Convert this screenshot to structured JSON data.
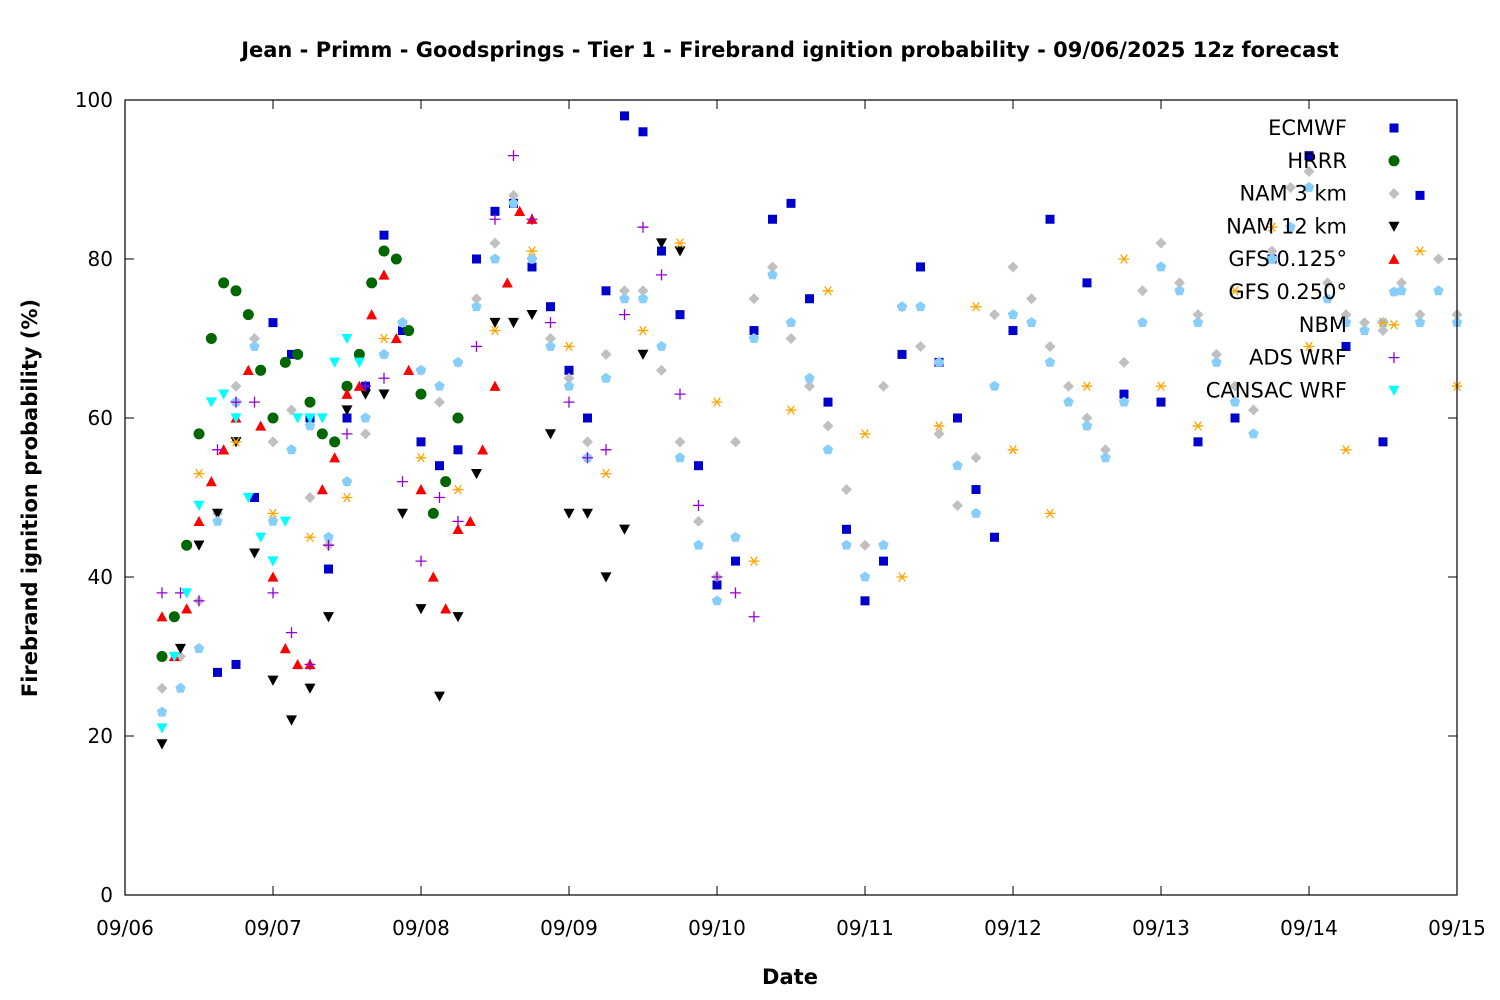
{
  "chart_data": {
    "type": "scatter",
    "title": "Jean - Primm - Goodsprings - Tier 1 - Firebrand ignition probability - 09/06/2025 12z forecast",
    "xlabel": "Date",
    "ylabel": "Firebrand ignition probability (%)",
    "xlim": [
      "2025-09-06T00:00",
      "2025-09-15T00:00"
    ],
    "ylim": [
      0,
      100
    ],
    "x_ticks": [
      "09/06",
      "09/07",
      "09/08",
      "09/09",
      "09/10",
      "09/11",
      "09/12",
      "09/13",
      "09/14",
      "09/15"
    ],
    "y_ticks": [
      0,
      20,
      40,
      60,
      80,
      100
    ],
    "grid": false,
    "legend_position": "top-right",
    "series": [
      {
        "name": "ECMWF",
        "color": "#0000cc",
        "marker": "square",
        "x": [
          "2025-09-06T15:00",
          "2025-09-06T18:00",
          "2025-09-06T21:00",
          "2025-09-07T00:00",
          "2025-09-07T03:00",
          "2025-09-07T06:00",
          "2025-09-07T09:00",
          "2025-09-07T12:00",
          "2025-09-07T15:00",
          "2025-09-07T18:00",
          "2025-09-07T21:00",
          "2025-09-08T00:00",
          "2025-09-08T03:00",
          "2025-09-08T06:00",
          "2025-09-08T09:00",
          "2025-09-08T12:00",
          "2025-09-08T15:00",
          "2025-09-08T18:00",
          "2025-09-08T21:00",
          "2025-09-09T00:00",
          "2025-09-09T03:00",
          "2025-09-09T06:00",
          "2025-09-09T09:00",
          "2025-09-09T12:00",
          "2025-09-09T15:00",
          "2025-09-09T18:00",
          "2025-09-09T21:00",
          "2025-09-10T00:00",
          "2025-09-10T03:00",
          "2025-09-10T06:00",
          "2025-09-10T09:00",
          "2025-09-10T12:00",
          "2025-09-10T15:00",
          "2025-09-10T18:00",
          "2025-09-10T21:00",
          "2025-09-11T00:00",
          "2025-09-11T03:00",
          "2025-09-11T06:00",
          "2025-09-11T09:00",
          "2025-09-11T12:00",
          "2025-09-11T15:00",
          "2025-09-11T18:00",
          "2025-09-11T21:00",
          "2025-09-12T00:00",
          "2025-09-12T06:00",
          "2025-09-12T12:00",
          "2025-09-12T18:00",
          "2025-09-13T00:00",
          "2025-09-13T06:00",
          "2025-09-13T12:00",
          "2025-09-13T18:00",
          "2025-09-14T00:00",
          "2025-09-14T06:00",
          "2025-09-14T12:00",
          "2025-09-14T18:00"
        ],
        "y": [
          28,
          29,
          50,
          72,
          68,
          60,
          41,
          60,
          64,
          83,
          71,
          57,
          54,
          56,
          80,
          86,
          87,
          79,
          74,
          66,
          60,
          76,
          98,
          96,
          81,
          73,
          54,
          39,
          42,
          71,
          85,
          87,
          75,
          62,
          46,
          37,
          42,
          68,
          79,
          67,
          60,
          51,
          45,
          71,
          85,
          77,
          63,
          62,
          57,
          60,
          80,
          93,
          69,
          57,
          88
        ]
      },
      {
        "name": "HRRR",
        "color": "#006600",
        "marker": "circle",
        "x": [
          "2025-09-06T06:00",
          "2025-09-06T08:00",
          "2025-09-06T10:00",
          "2025-09-06T12:00",
          "2025-09-06T14:00",
          "2025-09-06T16:00",
          "2025-09-06T18:00",
          "2025-09-06T20:00",
          "2025-09-06T22:00",
          "2025-09-07T00:00",
          "2025-09-07T02:00",
          "2025-09-07T04:00",
          "2025-09-07T06:00",
          "2025-09-07T08:00",
          "2025-09-07T10:00",
          "2025-09-07T12:00",
          "2025-09-07T14:00",
          "2025-09-07T16:00",
          "2025-09-07T18:00",
          "2025-09-07T20:00",
          "2025-09-07T22:00",
          "2025-09-08T00:00",
          "2025-09-08T02:00",
          "2025-09-08T04:00",
          "2025-09-08T06:00"
        ],
        "y": [
          30,
          35,
          44,
          58,
          70,
          77,
          76,
          73,
          66,
          60,
          67,
          68,
          62,
          58,
          57,
          64,
          68,
          77,
          81,
          80,
          71,
          63,
          48,
          52,
          60
        ]
      },
      {
        "name": "NAM 3 km",
        "color": "#c0c0c0",
        "marker": "diamond",
        "x": [
          "2025-09-06T06:00",
          "2025-09-06T09:00",
          "2025-09-06T12:00",
          "2025-09-06T15:00",
          "2025-09-06T18:00",
          "2025-09-06T21:00",
          "2025-09-07T00:00",
          "2025-09-07T03:00",
          "2025-09-07T06:00",
          "2025-09-07T09:00",
          "2025-09-07T12:00",
          "2025-09-07T15:00",
          "2025-09-07T18:00",
          "2025-09-07T21:00",
          "2025-09-08T00:00",
          "2025-09-08T03:00",
          "2025-09-08T06:00",
          "2025-09-08T09:00",
          "2025-09-08T12:00",
          "2025-09-08T15:00",
          "2025-09-08T18:00",
          "2025-09-08T21:00",
          "2025-09-09T00:00",
          "2025-09-09T03:00",
          "2025-09-09T06:00",
          "2025-09-09T09:00",
          "2025-09-09T12:00",
          "2025-09-09T15:00",
          "2025-09-09T18:00",
          "2025-09-09T21:00",
          "2025-09-10T00:00",
          "2025-09-10T03:00",
          "2025-09-10T06:00",
          "2025-09-10T09:00",
          "2025-09-10T12:00",
          "2025-09-10T15:00",
          "2025-09-10T18:00",
          "2025-09-10T21:00",
          "2025-09-11T00:00",
          "2025-09-11T03:00",
          "2025-09-11T06:00",
          "2025-09-11T09:00",
          "2025-09-11T12:00",
          "2025-09-11T15:00",
          "2025-09-11T18:00",
          "2025-09-11T21:00",
          "2025-09-12T00:00",
          "2025-09-12T03:00",
          "2025-09-12T06:00",
          "2025-09-12T09:00",
          "2025-09-12T12:00",
          "2025-09-12T15:00",
          "2025-09-12T18:00",
          "2025-09-12T21:00",
          "2025-09-13T00:00",
          "2025-09-13T03:00",
          "2025-09-13T06:00",
          "2025-09-13T09:00",
          "2025-09-13T12:00",
          "2025-09-13T15:00",
          "2025-09-13T18:00",
          "2025-09-13T21:00",
          "2025-09-14T00:00",
          "2025-09-14T03:00",
          "2025-09-14T06:00",
          "2025-09-14T09:00",
          "2025-09-14T12:00",
          "2025-09-14T15:00",
          "2025-09-14T18:00",
          "2025-09-14T21:00",
          "2025-09-15T00:00"
        ],
        "y": [
          26,
          30,
          37,
          48,
          64,
          70,
          57,
          61,
          50,
          44,
          52,
          58,
          68,
          72,
          66,
          62,
          67,
          75,
          82,
          88,
          80,
          70,
          65,
          57,
          68,
          76,
          76,
          66,
          57,
          47,
          40,
          57,
          75,
          79,
          70,
          64,
          59,
          51,
          44,
          64,
          74,
          69,
          58,
          49,
          55,
          73,
          79,
          75,
          69,
          64,
          60,
          56,
          67,
          76,
          82,
          77,
          73,
          68,
          64,
          61,
          81,
          89,
          91,
          77,
          73,
          72,
          71,
          77,
          73,
          80,
          73
        ]
      },
      {
        "name": "NAM 12 km",
        "color": "#000000",
        "marker": "triangle-down",
        "x": [
          "2025-09-06T06:00",
          "2025-09-06T09:00",
          "2025-09-06T12:00",
          "2025-09-06T15:00",
          "2025-09-06T18:00",
          "2025-09-06T21:00",
          "2025-09-07T00:00",
          "2025-09-07T03:00",
          "2025-09-07T06:00",
          "2025-09-07T09:00",
          "2025-09-07T12:00",
          "2025-09-07T15:00",
          "2025-09-07T18:00",
          "2025-09-07T21:00",
          "2025-09-08T00:00",
          "2025-09-08T03:00",
          "2025-09-08T06:00",
          "2025-09-08T09:00",
          "2025-09-08T12:00",
          "2025-09-08T15:00",
          "2025-09-08T18:00",
          "2025-09-08T21:00",
          "2025-09-09T00:00",
          "2025-09-09T03:00",
          "2025-09-09T06:00",
          "2025-09-09T09:00",
          "2025-09-09T12:00",
          "2025-09-09T15:00",
          "2025-09-09T18:00"
        ],
        "y": [
          19,
          31,
          44,
          48,
          57,
          43,
          27,
          22,
          26,
          35,
          61,
          63,
          63,
          48,
          36,
          25,
          35,
          53,
          72,
          72,
          73,
          58,
          48,
          48,
          40,
          46,
          68,
          82,
          81
        ]
      },
      {
        "name": "GFS 0.125°",
        "color": "#ff0000",
        "marker": "triangle-up",
        "x": [
          "2025-09-06T06:00",
          "2025-09-06T08:00",
          "2025-09-06T10:00",
          "2025-09-06T12:00",
          "2025-09-06T14:00",
          "2025-09-06T16:00",
          "2025-09-06T18:00",
          "2025-09-06T20:00",
          "2025-09-06T22:00",
          "2025-09-07T00:00",
          "2025-09-07T02:00",
          "2025-09-07T04:00",
          "2025-09-07T06:00",
          "2025-09-07T08:00",
          "2025-09-07T10:00",
          "2025-09-07T12:00",
          "2025-09-07T14:00",
          "2025-09-07T16:00",
          "2025-09-07T18:00",
          "2025-09-07T20:00",
          "2025-09-07T22:00",
          "2025-09-08T00:00",
          "2025-09-08T02:00",
          "2025-09-08T04:00",
          "2025-09-08T06:00",
          "2025-09-08T08:00",
          "2025-09-08T10:00",
          "2025-09-08T12:00",
          "2025-09-08T14:00",
          "2025-09-08T16:00",
          "2025-09-08T18:00"
        ],
        "y": [
          35,
          30,
          36,
          47,
          52,
          56,
          60,
          66,
          59,
          40,
          31,
          29,
          29,
          51,
          55,
          63,
          64,
          73,
          78,
          70,
          66,
          51,
          40,
          36,
          46,
          47,
          56,
          64,
          77,
          86,
          85
        ]
      },
      {
        "name": "GFS 0.250°",
        "color": "#87cefa",
        "marker": "pentagon",
        "x": [
          "2025-09-06T06:00",
          "2025-09-06T09:00",
          "2025-09-06T12:00",
          "2025-09-06T15:00",
          "2025-09-06T18:00",
          "2025-09-06T21:00",
          "2025-09-07T00:00",
          "2025-09-07T03:00",
          "2025-09-07T06:00",
          "2025-09-07T09:00",
          "2025-09-07T12:00",
          "2025-09-07T15:00",
          "2025-09-07T18:00",
          "2025-09-07T21:00",
          "2025-09-08T00:00",
          "2025-09-08T03:00",
          "2025-09-08T06:00",
          "2025-09-08T09:00",
          "2025-09-08T12:00",
          "2025-09-08T15:00",
          "2025-09-08T18:00",
          "2025-09-08T21:00",
          "2025-09-09T00:00",
          "2025-09-09T03:00",
          "2025-09-09T06:00",
          "2025-09-09T09:00",
          "2025-09-09T12:00",
          "2025-09-09T15:00",
          "2025-09-09T18:00",
          "2025-09-09T21:00",
          "2025-09-10T00:00",
          "2025-09-10T03:00",
          "2025-09-10T06:00",
          "2025-09-10T09:00",
          "2025-09-10T12:00",
          "2025-09-10T15:00",
          "2025-09-10T18:00",
          "2025-09-10T21:00",
          "2025-09-11T00:00",
          "2025-09-11T03:00",
          "2025-09-11T06:00",
          "2025-09-11T09:00",
          "2025-09-11T12:00",
          "2025-09-11T15:00",
          "2025-09-11T18:00",
          "2025-09-11T21:00",
          "2025-09-12T00:00",
          "2025-09-12T03:00",
          "2025-09-12T06:00",
          "2025-09-12T09:00",
          "2025-09-12T12:00",
          "2025-09-12T15:00",
          "2025-09-12T18:00",
          "2025-09-12T21:00",
          "2025-09-13T00:00",
          "2025-09-13T03:00",
          "2025-09-13T06:00",
          "2025-09-13T09:00",
          "2025-09-13T12:00",
          "2025-09-13T15:00",
          "2025-09-13T18:00",
          "2025-09-13T21:00",
          "2025-09-14T00:00",
          "2025-09-14T03:00",
          "2025-09-14T06:00",
          "2025-09-14T09:00",
          "2025-09-14T12:00",
          "2025-09-14T15:00",
          "2025-09-14T18:00",
          "2025-09-14T21:00",
          "2025-09-15T00:00"
        ],
        "y": [
          23,
          26,
          31,
          47,
          62,
          69,
          47,
          56,
          59,
          45,
          52,
          60,
          68,
          72,
          66,
          64,
          67,
          74,
          80,
          87,
          80,
          69,
          64,
          55,
          65,
          75,
          75,
          69,
          55,
          44,
          37,
          45,
          70,
          78,
          72,
          65,
          56,
          44,
          40,
          44,
          74,
          74,
          67,
          54,
          48,
          64,
          73,
          72,
          67,
          62,
          59,
          55,
          62,
          72,
          79,
          76,
          72,
          67,
          62,
          58,
          80,
          84,
          89,
          75,
          72,
          71,
          72,
          76,
          72,
          76,
          72
        ]
      },
      {
        "name": "NBM",
        "color": "#ffa500",
        "marker": "asterisk",
        "x": [
          "2025-09-06T12:00",
          "2025-09-06T18:00",
          "2025-09-07T00:00",
          "2025-09-07T06:00",
          "2025-09-07T12:00",
          "2025-09-07T18:00",
          "2025-09-08T00:00",
          "2025-09-08T06:00",
          "2025-09-08T12:00",
          "2025-09-08T18:00",
          "2025-09-09T00:00",
          "2025-09-09T06:00",
          "2025-09-09T12:00",
          "2025-09-09T18:00",
          "2025-09-10T00:00",
          "2025-09-10T06:00",
          "2025-09-10T12:00",
          "2025-09-10T18:00",
          "2025-09-11T00:00",
          "2025-09-11T06:00",
          "2025-09-11T12:00",
          "2025-09-11T18:00",
          "2025-09-12T00:00",
          "2025-09-12T06:00",
          "2025-09-12T12:00",
          "2025-09-12T18:00",
          "2025-09-13T00:00",
          "2025-09-13T06:00",
          "2025-09-13T12:00",
          "2025-09-13T18:00",
          "2025-09-14T00:00",
          "2025-09-14T06:00",
          "2025-09-14T12:00",
          "2025-09-14T18:00",
          "2025-09-15T00:00"
        ],
        "y": [
          53,
          57,
          48,
          45,
          50,
          70,
          55,
          51,
          71,
          81,
          69,
          53,
          71,
          82,
          62,
          42,
          61,
          76,
          58,
          40,
          59,
          74,
          56,
          48,
          64,
          80,
          64,
          59,
          76,
          84,
          69,
          56,
          72,
          81,
          64
        ]
      },
      {
        "name": "ADS WRF",
        "color": "#9400d3",
        "marker": "plus",
        "x": [
          "2025-09-06T06:00",
          "2025-09-06T09:00",
          "2025-09-06T12:00",
          "2025-09-06T15:00",
          "2025-09-06T18:00",
          "2025-09-06T21:00",
          "2025-09-07T00:00",
          "2025-09-07T03:00",
          "2025-09-07T06:00",
          "2025-09-07T09:00",
          "2025-09-07T12:00",
          "2025-09-07T15:00",
          "2025-09-07T18:00",
          "2025-09-07T21:00",
          "2025-09-08T00:00",
          "2025-09-08T03:00",
          "2025-09-08T06:00",
          "2025-09-08T09:00",
          "2025-09-08T12:00",
          "2025-09-08T15:00",
          "2025-09-08T18:00",
          "2025-09-08T21:00",
          "2025-09-09T00:00",
          "2025-09-09T03:00",
          "2025-09-09T06:00",
          "2025-09-09T09:00",
          "2025-09-09T12:00",
          "2025-09-09T15:00",
          "2025-09-09T18:00",
          "2025-09-09T21:00",
          "2025-09-10T00:00",
          "2025-09-10T03:00",
          "2025-09-10T06:00"
        ],
        "y": [
          38,
          38,
          37,
          56,
          62,
          62,
          38,
          33,
          29,
          44,
          58,
          64,
          65,
          52,
          42,
          50,
          47,
          69,
          85,
          93,
          85,
          72,
          62,
          55,
          56,
          73,
          84,
          78,
          63,
          49,
          40,
          38,
          35
        ]
      },
      {
        "name": "CANSAC WRF",
        "color": "#00ffff",
        "marker": "triangle-down",
        "x": [
          "2025-09-06T06:00",
          "2025-09-06T08:00",
          "2025-09-06T10:00",
          "2025-09-06T12:00",
          "2025-09-06T14:00",
          "2025-09-06T16:00",
          "2025-09-06T18:00",
          "2025-09-06T20:00",
          "2025-09-06T22:00",
          "2025-09-07T00:00",
          "2025-09-07T02:00",
          "2025-09-07T04:00",
          "2025-09-07T06:00",
          "2025-09-07T08:00",
          "2025-09-07T10:00",
          "2025-09-07T12:00",
          "2025-09-07T14:00"
        ],
        "y": [
          21,
          30,
          38,
          49,
          62,
          63,
          60,
          50,
          45,
          42,
          47,
          60,
          60,
          60,
          67,
          70,
          67
        ]
      }
    ]
  }
}
